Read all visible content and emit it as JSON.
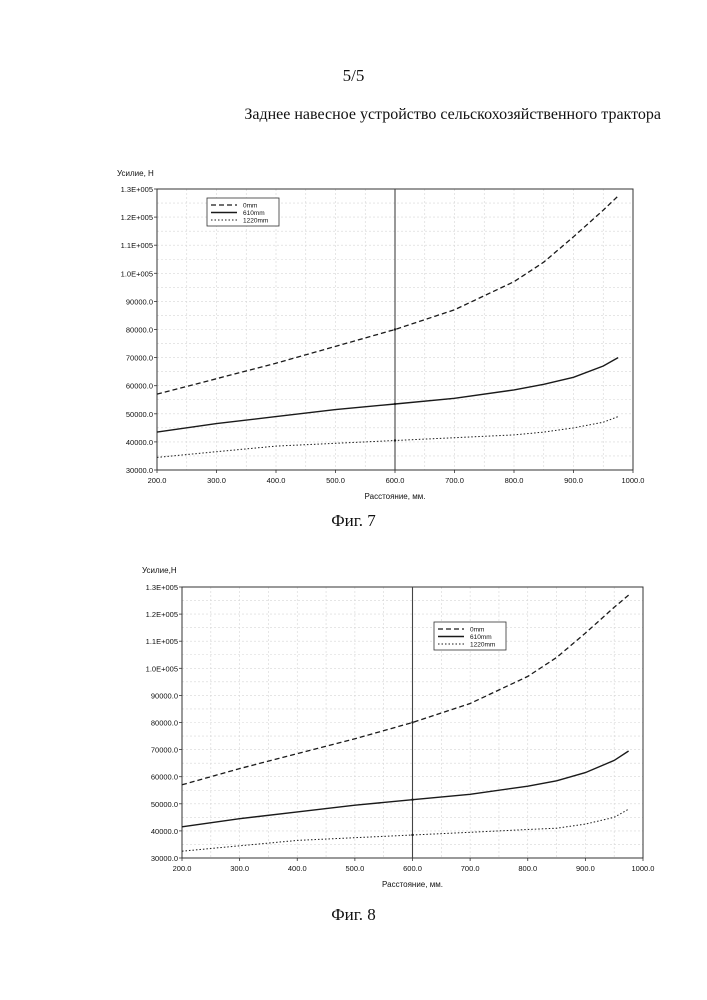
{
  "page_number": "5/5",
  "document_title": "Заднее навесное устройство сельскохозяйственного трактора",
  "chart_data": [
    {
      "type": "line",
      "caption": "Фиг. 7",
      "ylabel": "Усилие, Н",
      "xlabel": "Расстояние, мм.",
      "xlim": [
        200,
        1000
      ],
      "ylim": [
        30000,
        130000
      ],
      "x_ticks": [
        200,
        300,
        400,
        500,
        600,
        700,
        800,
        900,
        1000
      ],
      "x_tick_labels": [
        "200.0",
        "300.0",
        "400.0",
        "500.0",
        "600.0",
        "700.0",
        "800.0",
        "900.0",
        "1000.0"
      ],
      "y_ticks": [
        30000,
        40000,
        50000,
        60000,
        70000,
        80000,
        90000,
        100000,
        110000,
        120000,
        130000
      ],
      "y_tick_labels": [
        "30000.0",
        "40000.0",
        "50000.0",
        "60000.0",
        "70000.0",
        "80000.0",
        "90000.0",
        "1.0E+005",
        "1.1E+005",
        "1.2E+005",
        "1.3E+005"
      ],
      "vline_x": 600,
      "legend_position": "top-left",
      "grid": true,
      "series": [
        {
          "name": "0mm",
          "style": "dashed",
          "x": [
            200,
            300,
            400,
            500,
            600,
            700,
            800,
            850,
            900,
            950,
            975
          ],
          "y": [
            57000,
            62500,
            68000,
            74000,
            80000,
            87000,
            97000,
            104000,
            113000,
            122500,
            127500
          ]
        },
        {
          "name": "610mm",
          "style": "solid",
          "x": [
            200,
            300,
            400,
            500,
            600,
            700,
            800,
            850,
            900,
            950,
            975
          ],
          "y": [
            43500,
            46500,
            49000,
            51500,
            53500,
            55500,
            58500,
            60500,
            63000,
            67000,
            70000
          ]
        },
        {
          "name": "1220mm",
          "style": "dotted",
          "x": [
            200,
            300,
            400,
            500,
            600,
            700,
            800,
            850,
            900,
            950,
            975
          ],
          "y": [
            34500,
            36500,
            38500,
            39500,
            40500,
            41500,
            42500,
            43500,
            45000,
            47000,
            49000
          ]
        }
      ]
    },
    {
      "type": "line",
      "caption": "Фиг. 8",
      "ylabel": "Усилие,Н",
      "xlabel": "Расстояние, мм.",
      "xlim": [
        200,
        1000
      ],
      "ylim": [
        30000,
        130000
      ],
      "x_ticks": [
        200,
        300,
        400,
        500,
        600,
        700,
        800,
        900,
        1000
      ],
      "x_tick_labels": [
        "200.0",
        "300.0",
        "400.0",
        "500.0",
        "600.0",
        "700.0",
        "800.0",
        "900.0",
        "1000.0"
      ],
      "y_ticks": [
        30000,
        40000,
        50000,
        60000,
        70000,
        80000,
        90000,
        100000,
        110000,
        120000,
        130000
      ],
      "y_tick_labels": [
        "30000.0",
        "40000.0",
        "50000.0",
        "60000.0",
        "70000.0",
        "80000.0",
        "90000.0",
        "1.0E+005",
        "1.1E+005",
        "1.2E+005",
        "1.3E+005"
      ],
      "vline_x": 600,
      "legend_position": "top-right",
      "grid": true,
      "series": [
        {
          "name": "0mm",
          "style": "dashed",
          "x": [
            200,
            300,
            400,
            500,
            600,
            700,
            800,
            850,
            900,
            950,
            975
          ],
          "y": [
            57000,
            63000,
            68500,
            74000,
            80000,
            87000,
            97000,
            104000,
            113000,
            122500,
            127000
          ]
        },
        {
          "name": "610mm",
          "style": "solid",
          "x": [
            200,
            300,
            400,
            500,
            600,
            700,
            800,
            850,
            900,
            950,
            975
          ],
          "y": [
            41500,
            44500,
            47000,
            49500,
            51500,
            53500,
            56500,
            58500,
            61500,
            66000,
            69500
          ]
        },
        {
          "name": "1220mm",
          "style": "dotted",
          "x": [
            200,
            300,
            400,
            500,
            600,
            700,
            800,
            850,
            900,
            950,
            975
          ],
          "y": [
            32500,
            34500,
            36500,
            37500,
            38500,
            39500,
            40500,
            41000,
            42500,
            45000,
            48000
          ]
        }
      ]
    }
  ]
}
